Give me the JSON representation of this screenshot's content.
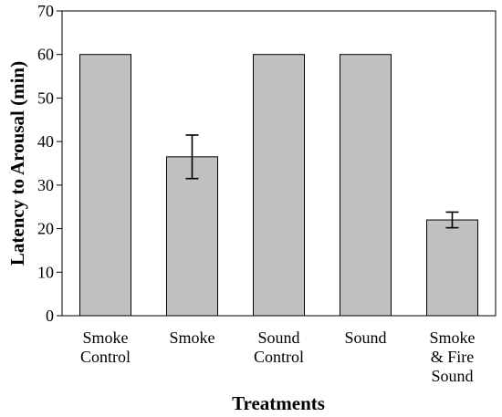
{
  "chart_data": {
    "type": "bar",
    "title": "",
    "xlabel": "Treatments",
    "ylabel": "Latency to Arousal (min)",
    "ylim": [
      0,
      70
    ],
    "yticks": [
      0,
      10,
      20,
      30,
      40,
      50,
      60,
      70
    ],
    "grid": false,
    "legend": "none",
    "bar_color": "#c0c0c0",
    "categories": [
      [
        "Smoke",
        "Control"
      ],
      [
        "Smoke"
      ],
      [
        "Sound",
        "Control"
      ],
      [
        "Sound"
      ],
      [
        "Smoke",
        "& Fire",
        "Sound"
      ]
    ],
    "values": [
      60,
      36.5,
      60,
      60,
      22
    ],
    "error": [
      null,
      5,
      null,
      null,
      1.8
    ]
  }
}
